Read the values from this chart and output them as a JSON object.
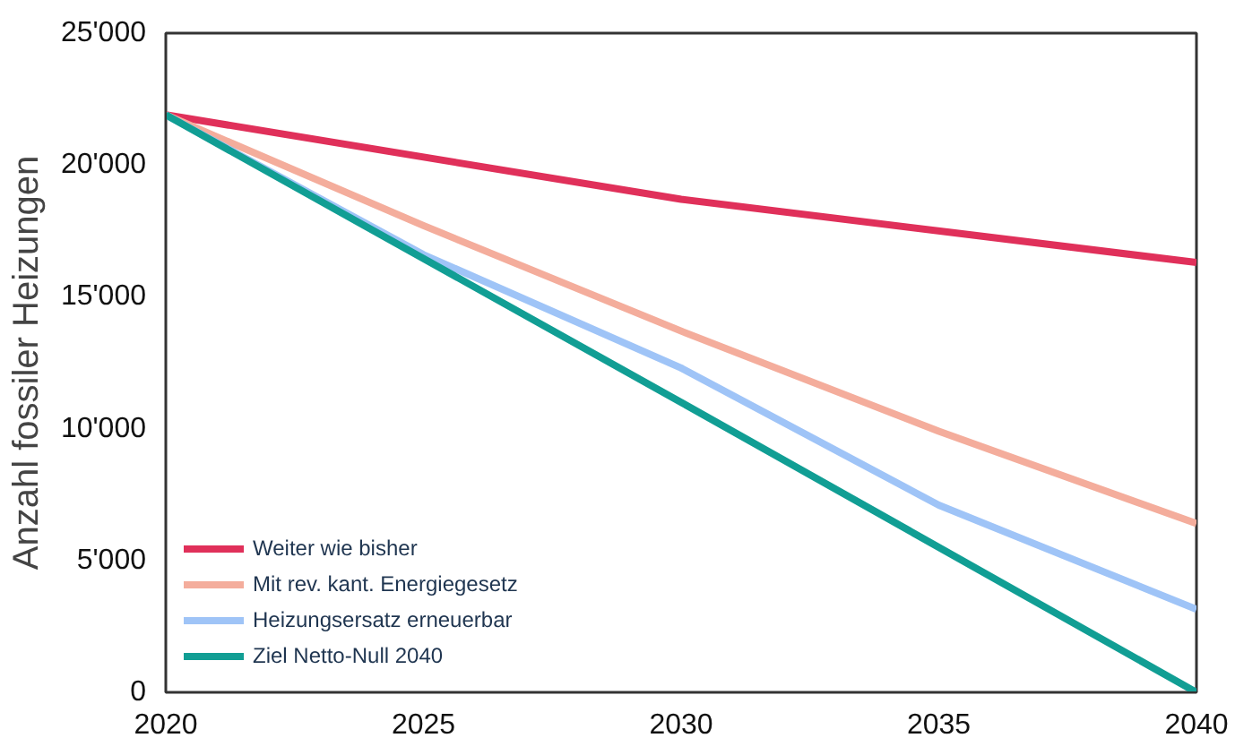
{
  "chart_data": {
    "type": "line",
    "ylabel": "Anzahl fossiler Heizungen",
    "xlim": [
      2020,
      2040
    ],
    "xticks": [
      2020,
      2025,
      2030,
      2035,
      2040
    ],
    "ylim": [
      0,
      25000
    ],
    "yticks": [
      0,
      {
        "value": 5000,
        "label": "5'000"
      },
      {
        "value": 10000,
        "label": "10'000"
      },
      {
        "value": 15000,
        "label": "15'000"
      },
      {
        "value": 20000,
        "label": "20'000"
      },
      {
        "value": 25000,
        "label": "25'000"
      }
    ],
    "grid": false,
    "legend": "bottom left",
    "marker": "none",
    "line_style": "solid",
    "series": [
      {
        "name": "Weiter wie bisher",
        "color": "#e0305a",
        "x": [
          2020,
          2030,
          2040
        ],
        "values": [
          21900,
          18700,
          16300
        ]
      },
      {
        "name": "Mit rev. kant. Energiegesetz",
        "color": "#f4ad9c",
        "x": [
          2020,
          2025,
          2030,
          2035,
          2040
        ],
        "values": [
          21900,
          17700,
          13700,
          9900,
          6400
        ]
      },
      {
        "name": "Heizungsersatz erneuerbar",
        "color": "#9fc4f7",
        "x": [
          2020,
          2025,
          2030,
          2035,
          2040
        ],
        "values": [
          21900,
          16600,
          12300,
          7100,
          3150
        ]
      },
      {
        "name": "Ziel Netto-Null 2040",
        "color": "#119e94",
        "x": [
          2020,
          2030,
          2040
        ],
        "values": [
          21900,
          11000,
          0
        ]
      }
    ]
  }
}
